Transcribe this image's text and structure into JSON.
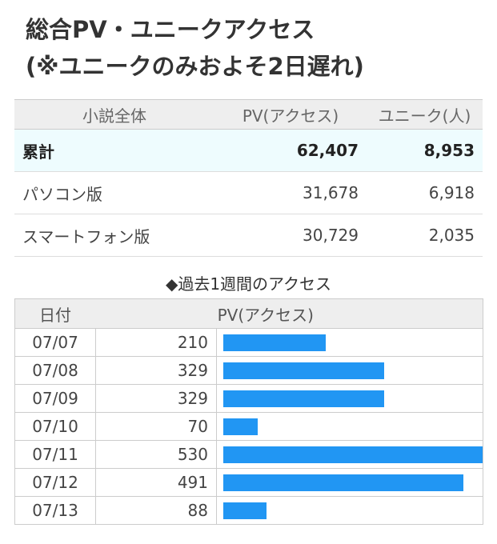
{
  "title": {
    "line1": "総合PV・ユニークアクセス",
    "line2": "(※ユニークのみおよそ2日遅れ)"
  },
  "summary": {
    "headers": [
      "小説全体",
      "PV(アクセス)",
      "ユニーク(人)"
    ],
    "rows": [
      {
        "label": "累計",
        "pv": "62,407",
        "unique": "8,953"
      },
      {
        "label": "パソコン版",
        "pv": "31,678",
        "unique": "6,918"
      },
      {
        "label": "スマートフォン版",
        "pv": "30,729",
        "unique": "2,035"
      }
    ]
  },
  "weekly": {
    "caption": "◆過去1週間のアクセス",
    "headers": [
      "日付",
      "PV(アクセス)"
    ],
    "max_value": 530,
    "rows": [
      {
        "date": "07/07",
        "pv": 210
      },
      {
        "date": "07/08",
        "pv": 329
      },
      {
        "date": "07/09",
        "pv": 329
      },
      {
        "date": "07/10",
        "pv": 70
      },
      {
        "date": "07/11",
        "pv": 530
      },
      {
        "date": "07/12",
        "pv": 491
      },
      {
        "date": "07/13",
        "pv": 88
      }
    ]
  },
  "colors": {
    "bar": "#2196f3",
    "total_row_bg": "#eefcfe",
    "header_bg": "#eeeeee"
  }
}
